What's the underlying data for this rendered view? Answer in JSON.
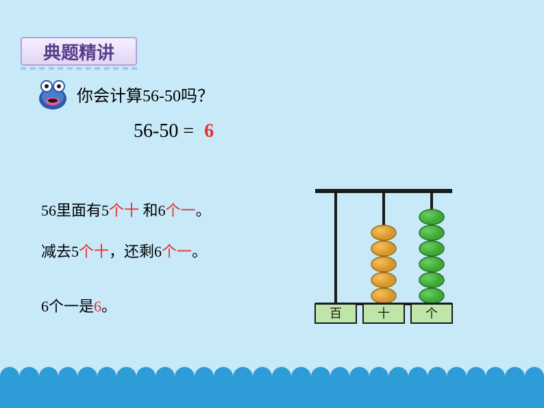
{
  "header": {
    "title": "典题精讲"
  },
  "question": "你会计算56-50吗？",
  "equation": {
    "expr": "56-50  =",
    "result": "6"
  },
  "lines": {
    "l1": {
      "a": "56里面有5",
      "b": "个十",
      "c": " 和6",
      "d": "个一",
      "e": "。"
    },
    "l2": {
      "a": "减去5",
      "b": "个十",
      "c": "，还剩6",
      "d": "个一",
      "e": "。"
    },
    "l3": {
      "a": "6个一是",
      "b": "6",
      "c": "。"
    }
  },
  "abacus": {
    "rods": [
      {
        "label": "百",
        "beads": 0,
        "color": "#d4982f",
        "stroke": "#a06a15"
      },
      {
        "label": "十",
        "beads": 5,
        "color": "#d4982f",
        "stroke": "#a06a15"
      },
      {
        "label": "个",
        "beads": 6,
        "color": "#3fa838",
        "stroke": "#257020"
      }
    ],
    "frame_color": "#1a1a1a",
    "label_bg": "#c0e5a8",
    "label_border": "#1a1a1a",
    "label_fontsize": 18
  },
  "colors": {
    "background": "#c7e9f8",
    "red": "#e8302d",
    "wave": "#2e9cd6",
    "header_border": "#b89edb",
    "header_text": "#5a3d8a"
  }
}
